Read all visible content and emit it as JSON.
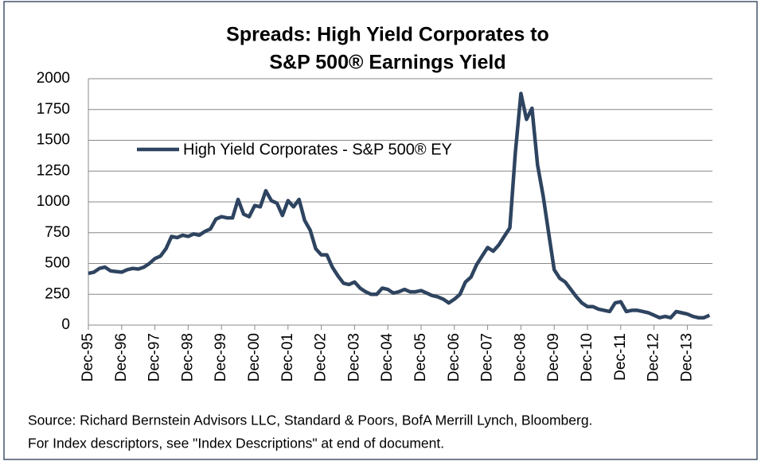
{
  "chart_data": {
    "type": "line",
    "title": [
      "Spreads: High Yield Corporates to",
      "S&P 500® Earnings Yield"
    ],
    "source": [
      "Source: Richard Bernstein Advisors LLC, Standard & Poors, BofA Merrill Lynch, Bloomberg.",
      "For Index descriptors, see \"Index Descriptions\" at end of document."
    ],
    "categories": [
      "Dec-95",
      null,
      null,
      null,
      null,
      null,
      "Dec-96",
      null,
      null,
      null,
      null,
      null,
      "Dec-97",
      null,
      null,
      null,
      null,
      null,
      "Dec-98",
      null,
      null,
      null,
      null,
      null,
      "Dec-99",
      null,
      null,
      null,
      null,
      null,
      "Dec-00",
      null,
      null,
      null,
      null,
      null,
      "Dec-01",
      null,
      null,
      null,
      null,
      null,
      "Dec-02",
      null,
      null,
      null,
      null,
      null,
      "Dec-03",
      null,
      null,
      null,
      null,
      null,
      "Dec-04",
      null,
      null,
      null,
      null,
      null,
      "Dec-05",
      null,
      null,
      null,
      null,
      null,
      "Dec-06",
      null,
      null,
      null,
      null,
      null,
      "Dec-07",
      null,
      null,
      null,
      null,
      null,
      "Dec-08",
      null,
      null,
      null,
      null,
      null,
      "Dec-09",
      null,
      null,
      null,
      null,
      null,
      "Dec-10",
      null,
      null,
      null,
      null,
      null,
      "Dec-11",
      null,
      null,
      null,
      null,
      null,
      "Dec-12",
      null,
      null,
      null,
      null,
      null,
      "Dec-13",
      null,
      null,
      null,
      null
    ],
    "series": [
      {
        "name": "High Yield Corporates - S&P 500® EY",
        "color": "#2e4460",
        "values": [
          420,
          430,
          460,
          470,
          440,
          435,
          430,
          450,
          460,
          455,
          470,
          500,
          540,
          560,
          620,
          720,
          710,
          730,
          720,
          740,
          730,
          760,
          780,
          860,
          880,
          870,
          870,
          1020,
          900,
          880,
          970,
          960,
          1090,
          1010,
          990,
          890,
          1010,
          960,
          1020,
          850,
          770,
          620,
          570,
          570,
          470,
          400,
          340,
          330,
          350,
          300,
          270,
          250,
          250,
          300,
          290,
          260,
          270,
          290,
          270,
          270,
          280,
          260,
          240,
          230,
          210,
          180,
          210,
          250,
          350,
          390,
          490,
          560,
          630,
          600,
          650,
          720,
          790,
          1400,
          1880,
          1670,
          1760,
          1300,
          1050,
          750,
          450,
          380,
          350,
          290,
          230,
          180,
          150,
          150,
          130,
          120,
          110,
          180,
          190,
          110,
          120,
          120,
          110,
          100,
          80,
          60,
          70,
          60,
          110,
          100,
          90,
          70,
          60,
          60,
          80
        ]
      }
    ],
    "ylim": [
      0,
      2000
    ],
    "yticks": [
      0,
      250,
      500,
      750,
      1000,
      1250,
      1500,
      1750,
      2000
    ],
    "grid": true
  }
}
